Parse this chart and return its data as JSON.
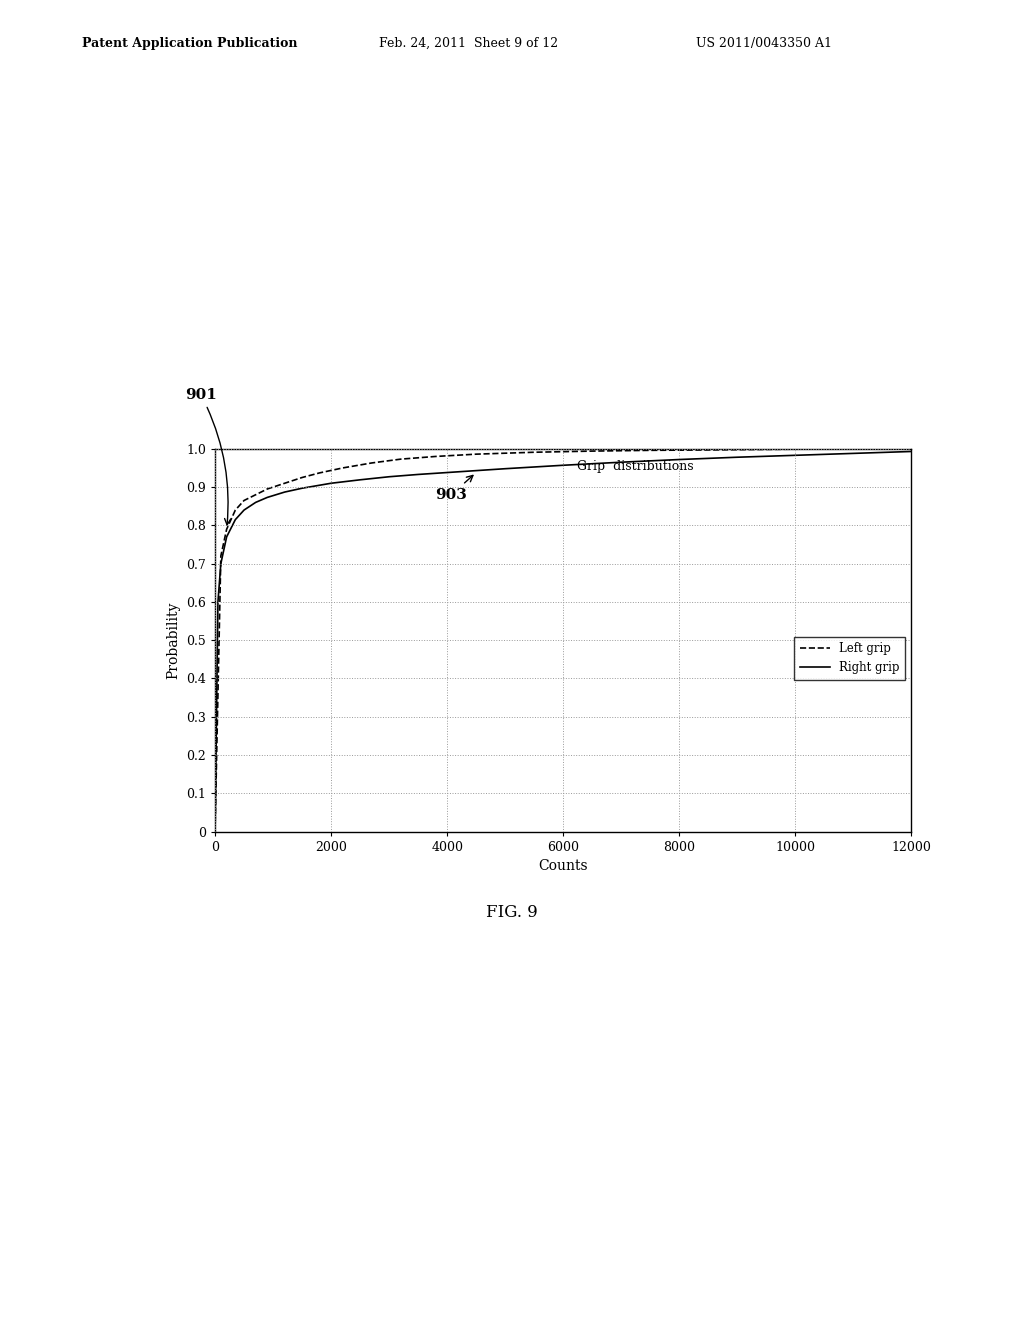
{
  "title": "Grip  distributions",
  "xlabel": "Counts",
  "ylabel": "Probability",
  "xlim": [
    0,
    12000
  ],
  "ylim": [
    0,
    1.0
  ],
  "xticks": [
    0,
    2000,
    4000,
    6000,
    8000,
    10000,
    12000
  ],
  "yticks": [
    0,
    0.1,
    0.2,
    0.3,
    0.4,
    0.5,
    0.6,
    0.7,
    0.8,
    0.9,
    1.0
  ],
  "header_left": "Patent Application Publication",
  "header_mid": "Feb. 24, 2011  Sheet 9 of 12",
  "header_right": "US 2011/0043350 A1",
  "fig_label": "FIG. 9",
  "annotation_901": "901",
  "annotation_903": "903",
  "legend_entries": [
    "Left grip",
    "Right grip"
  ],
  "background_color": "#ffffff",
  "grid_color": "#aaaaaa",
  "line_color": "#000000",
  "fig_width": 10.24,
  "fig_height": 13.2,
  "dpi": 100,
  "left_x": [
    0,
    100,
    200,
    350,
    500,
    700,
    900,
    1200,
    1500,
    1800,
    2200,
    2700,
    3200,
    3800,
    4500,
    5500,
    6500,
    7500,
    8500,
    10000,
    12000
  ],
  "left_y": [
    0.0,
    0.72,
    0.79,
    0.84,
    0.865,
    0.88,
    0.895,
    0.91,
    0.925,
    0.937,
    0.95,
    0.963,
    0.973,
    0.98,
    0.986,
    0.991,
    0.994,
    0.996,
    0.997,
    0.999,
    1.0
  ],
  "right_x": [
    0,
    50,
    100,
    200,
    350,
    500,
    700,
    900,
    1200,
    1500,
    2000,
    2500,
    3000,
    3500,
    4000,
    5000,
    6000,
    7000,
    8000,
    9000,
    10000,
    11000,
    12000
  ],
  "right_y": [
    0.0,
    0.6,
    0.7,
    0.77,
    0.815,
    0.84,
    0.86,
    0.873,
    0.887,
    0.897,
    0.91,
    0.919,
    0.927,
    0.933,
    0.938,
    0.948,
    0.957,
    0.965,
    0.972,
    0.978,
    0.983,
    0.988,
    0.993
  ]
}
